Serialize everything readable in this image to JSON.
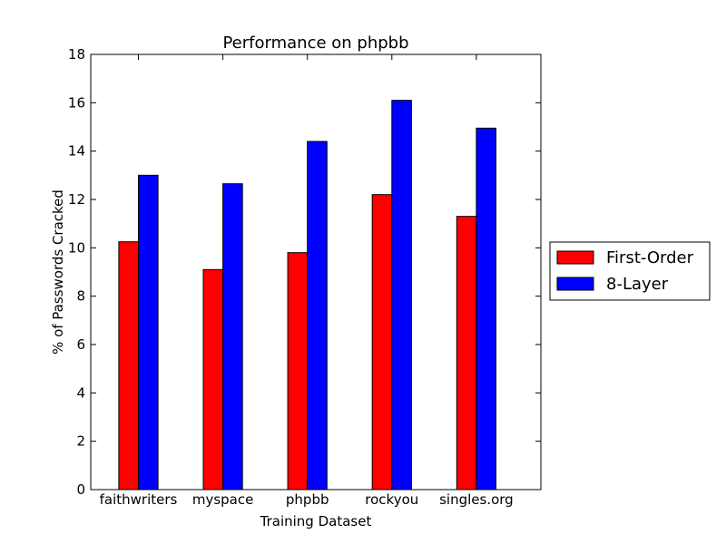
{
  "chart_data": {
    "type": "bar",
    "title": "Performance on phpbb",
    "xlabel": "Training Dataset",
    "ylabel": "% of Passwords Cracked",
    "ylim": [
      0,
      18
    ],
    "yticks": [
      "0",
      "2",
      "4",
      "6",
      "8",
      "10",
      "12",
      "14",
      "16",
      "18"
    ],
    "categories": [
      "faithwriters",
      "myspace",
      "phpbb",
      "rockyou",
      "singles.org"
    ],
    "series": [
      {
        "name": "First-Order",
        "color": "#ff0000",
        "values": [
          10.25,
          9.1,
          9.8,
          12.2,
          11.3
        ]
      },
      {
        "name": "8-Layer",
        "color": "#0000ff",
        "values": [
          13.0,
          12.65,
          14.4,
          16.1,
          14.95
        ]
      }
    ],
    "legend_position": "right",
    "grid": false
  }
}
